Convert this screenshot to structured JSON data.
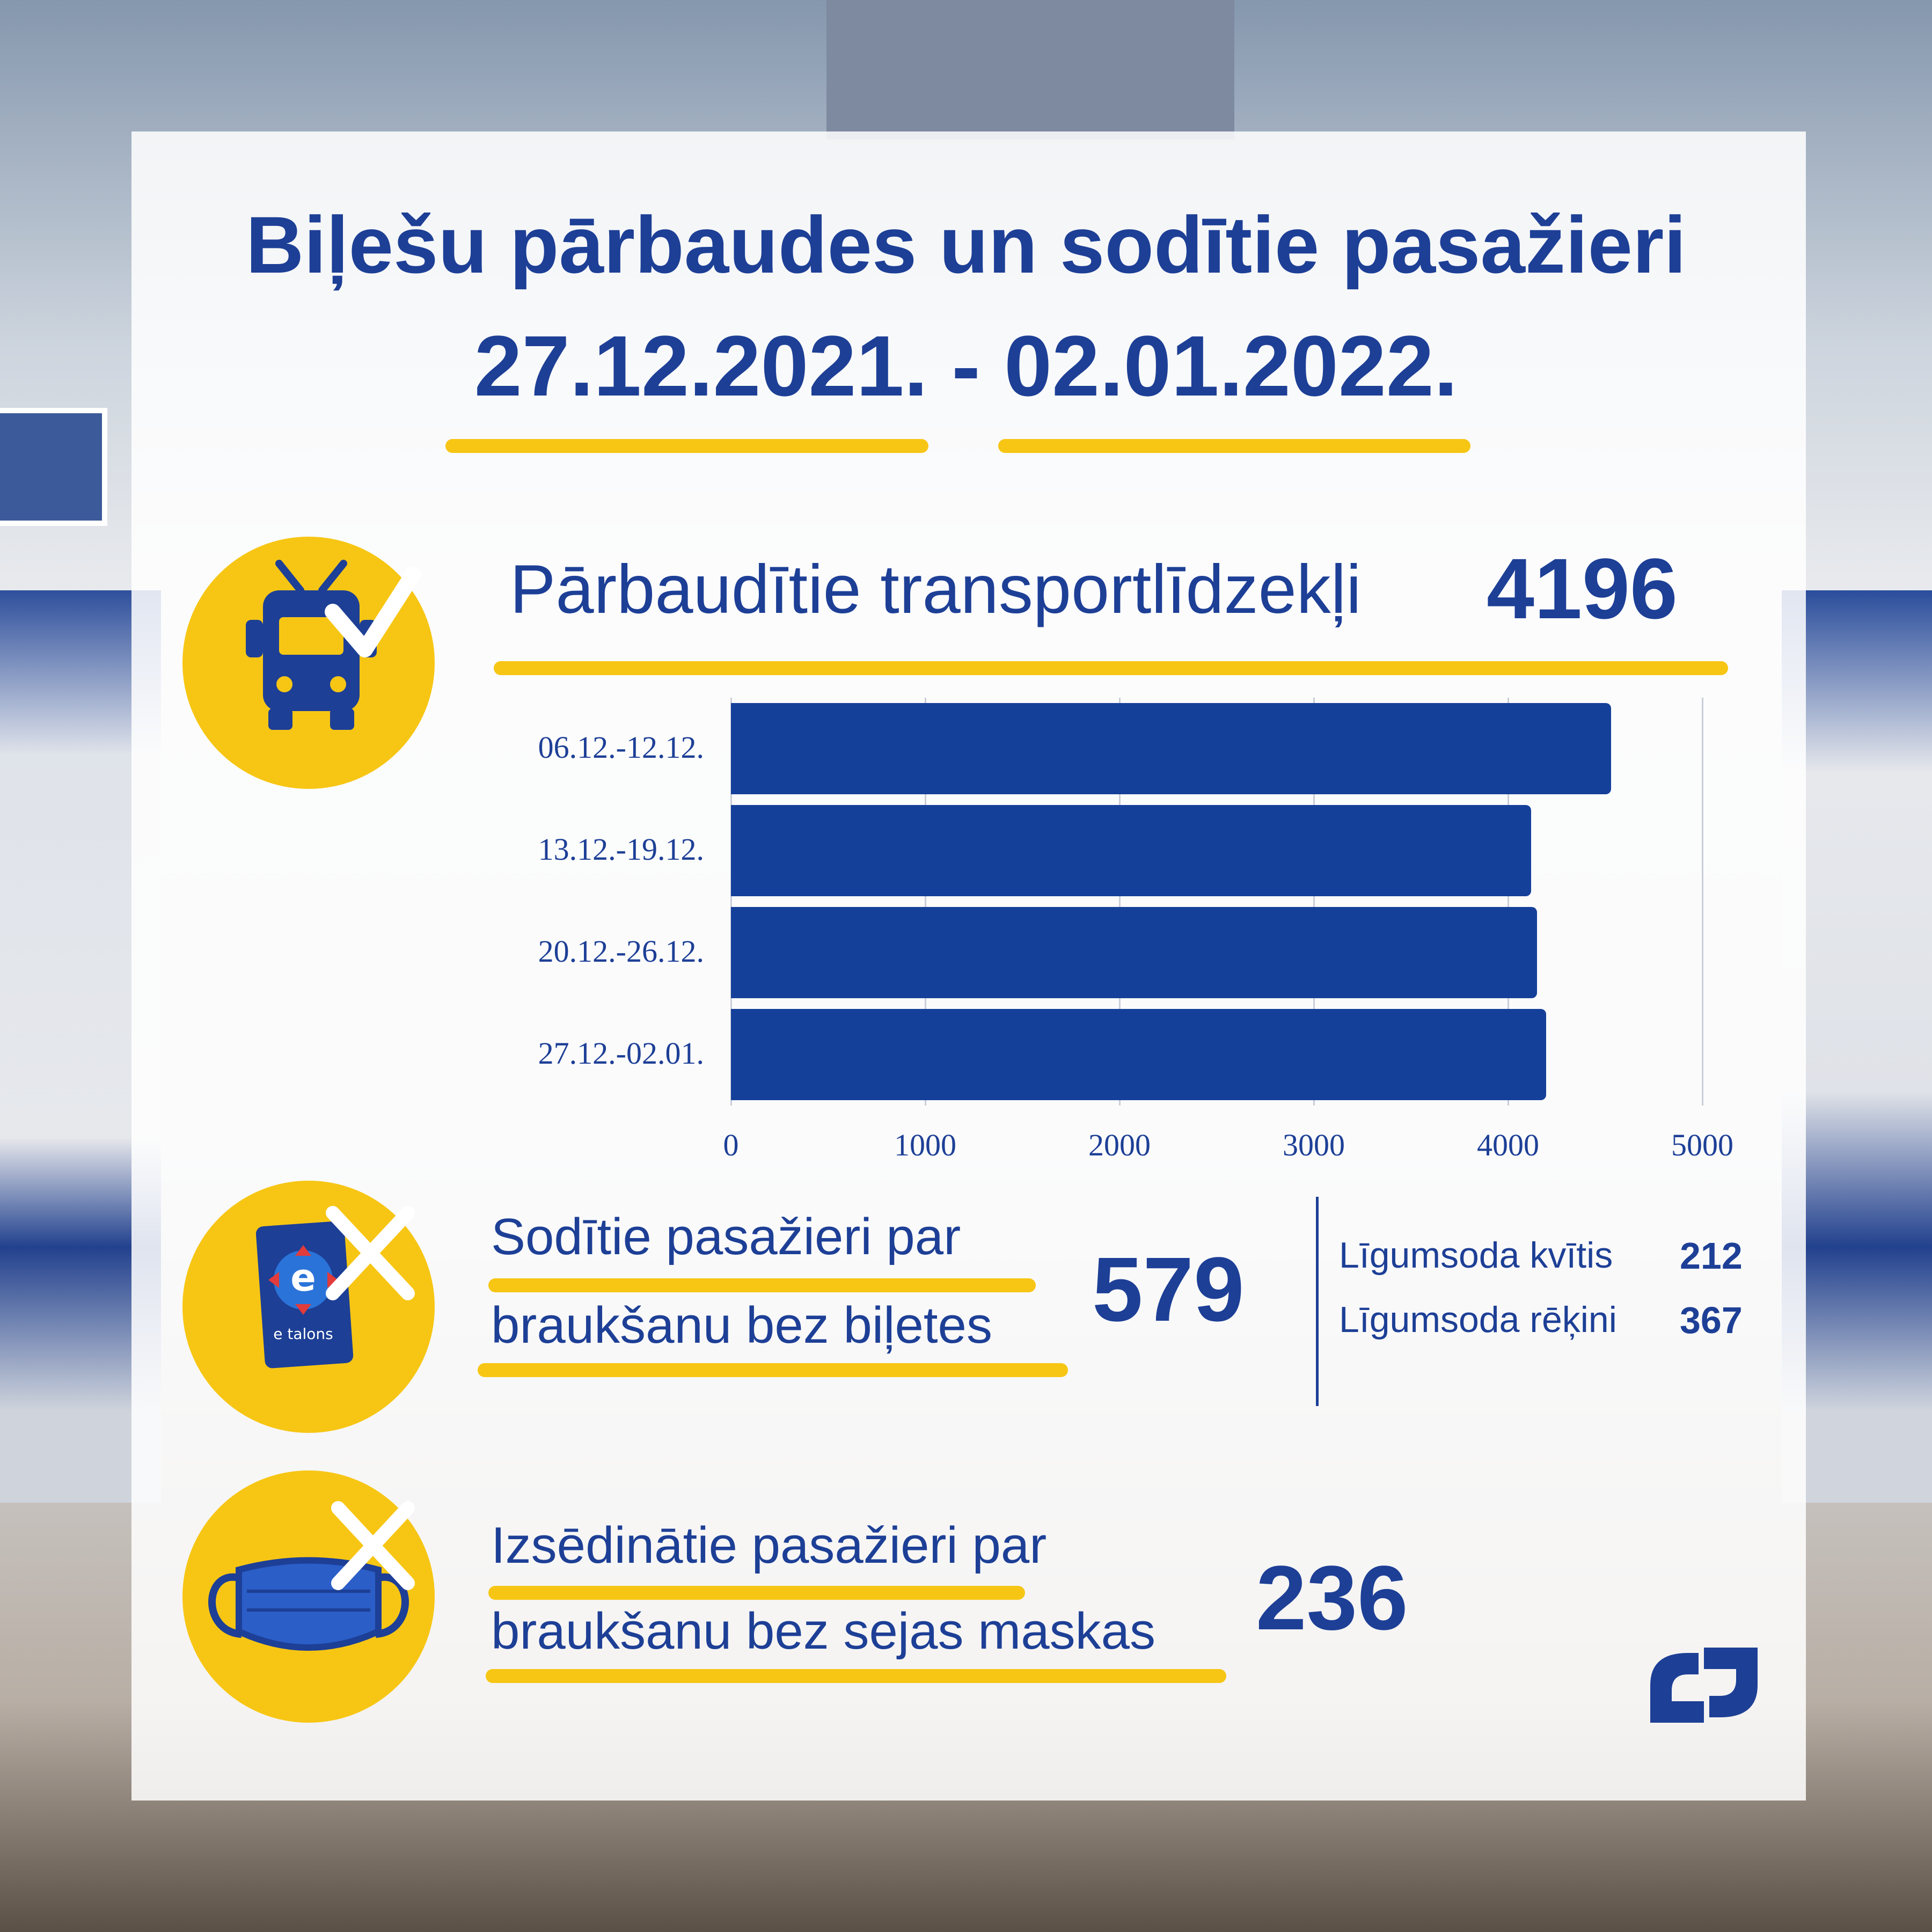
{
  "title": {
    "line1": "Biļešu pārbaudes un sodītie pasažieri",
    "line2": "27.12.2021. - 02.01.2022."
  },
  "stats": {
    "vehicles": {
      "label": "Pārbaudītie transportlīdzekļi",
      "value": "4196",
      "icon": "trolleybus-check-icon"
    },
    "fined": {
      "label_line1": "Sodītie pasažieri par",
      "label_line2": "braukšanu bez biļetes",
      "value": "579",
      "icon": "etalons-card-cross-icon",
      "card_text": "e talons",
      "breakdown": [
        {
          "label": "Līgumsoda kvītis",
          "value": "212"
        },
        {
          "label": "Līgumsoda rēķini",
          "value": "367"
        }
      ]
    },
    "removed": {
      "label_line1": "Izsēdinātie pasažieri par",
      "label_line2": "braukšanu bez sejas maskas",
      "value": "236",
      "icon": "face-mask-cross-icon"
    }
  },
  "logo": "rigas-satiksme-logo",
  "colors": {
    "brand_blue": "#1d3f96",
    "bar_blue": "#15409a",
    "accent_yellow": "#f7c614"
  },
  "chart_data": {
    "type": "bar",
    "orientation": "horizontal",
    "categories": [
      "06.12.-12.12.",
      "13.12.-19.12.",
      "20.12.-26.12.",
      "27.12.-02.01."
    ],
    "values": [
      4530,
      4120,
      4150,
      4196
    ],
    "xlim": [
      0,
      5000
    ],
    "x_ticks": [
      "0",
      "1000",
      "2000",
      "3000",
      "4000",
      "5000"
    ],
    "grid": true,
    "legend": "none"
  }
}
